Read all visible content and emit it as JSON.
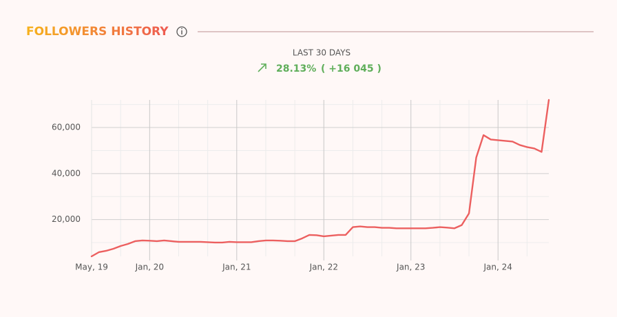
{
  "chart_data": {
    "type": "line",
    "title": "FOLLOWERS HISTORY",
    "period_label": "LAST 30 DAYS",
    "change_percent": "28.13%",
    "change_absolute": "( +16 045 )",
    "categories": [
      "May, 19",
      null,
      null,
      null,
      null,
      null,
      null,
      null,
      "Jan, 20",
      null,
      null,
      null,
      null,
      null,
      null,
      null,
      null,
      null,
      null,
      null,
      "Jan, 21",
      null,
      null,
      null,
      null,
      null,
      null,
      null,
      null,
      null,
      null,
      null,
      "Jan, 22",
      null,
      null,
      null,
      null,
      null,
      null,
      null,
      null,
      null,
      null,
      null,
      "Jan, 23",
      null,
      null,
      null,
      null,
      null,
      null,
      null,
      null,
      null,
      null,
      null,
      "Jan, 24",
      null,
      null,
      null,
      null,
      null,
      null,
      null
    ],
    "values": [
      4000,
      5800,
      6400,
      7300,
      8500,
      9400,
      10600,
      10900,
      10800,
      10600,
      10900,
      10600,
      10300,
      10300,
      10300,
      10300,
      10150,
      10000,
      10000,
      10300,
      10150,
      10150,
      10150,
      10600,
      10900,
      10900,
      10800,
      10600,
      10600,
      11800,
      13300,
      13200,
      12700,
      13000,
      13300,
      13300,
      16700,
      17000,
      16700,
      16700,
      16400,
      16400,
      16200,
      16200,
      16200,
      16200,
      16200,
      16400,
      16700,
      16500,
      16200,
      17600,
      22700,
      47000,
      56700,
      54800,
      54500,
      54200,
      53900,
      52400,
      51500,
      50900,
      49400,
      72000
    ],
    "color": "#ec5f5f",
    "ylim": [
      4000,
      72000
    ],
    "yticks": [
      {
        "value": 20000,
        "label": "20,000"
      },
      {
        "value": 40000,
        "label": "40,000"
      },
      {
        "value": 60000,
        "label": "60,000"
      }
    ],
    "grid": true
  }
}
